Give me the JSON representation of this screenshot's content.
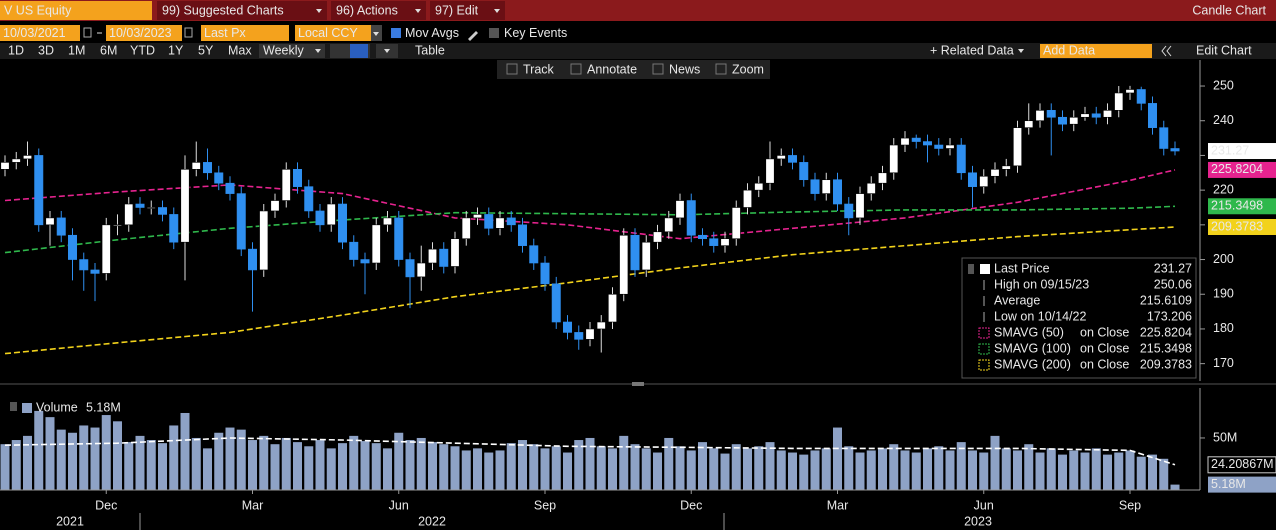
{
  "toolbar": {
    "security": "V US Equity",
    "menu": [
      "99) Suggested Charts",
      "96) Actions",
      "97) Edit"
    ],
    "title": "Candle Chart",
    "start_date": "10/03/2021",
    "end_date": "10/03/2023",
    "field": "Last Px",
    "currency": "Local CCY",
    "mov_avgs": "Mov Avgs",
    "key_events": "Key Events",
    "periods": [
      "1D",
      "3D",
      "1M",
      "6M",
      "YTD",
      "1Y",
      "5Y",
      "Max"
    ],
    "frequency": "Weekly",
    "table": "Table",
    "related_data": "+ Related Data",
    "add_data": "Add Data",
    "edit_chart": "Edit Chart",
    "tools": [
      "Track",
      "Annotate",
      "News",
      "Zoom"
    ]
  },
  "chart_data": [
    {
      "type": "candlestick",
      "categories": [
        null,
        null,
        null,
        null,
        null,
        null,
        null,
        null,
        null,
        "Dec",
        null,
        null,
        null,
        null,
        null,
        null,
        null,
        null,
        null,
        null,
        null,
        null,
        "Mar",
        null,
        null,
        null,
        null,
        null,
        null,
        null,
        null,
        null,
        null,
        null,
        null,
        "Jun",
        null,
        null,
        null,
        null,
        null,
        null,
        null,
        null,
        null,
        null,
        null,
        null,
        "Sep",
        null,
        null,
        null,
        null,
        null,
        null,
        null,
        null,
        null,
        null,
        null,
        null,
        "Dec",
        null,
        null,
        null,
        null,
        null,
        null,
        null,
        null,
        null,
        null,
        null,
        null,
        "Mar",
        null,
        null,
        null,
        null,
        null,
        null,
        null,
        null,
        null,
        null,
        null,
        null,
        "Jun",
        null,
        null,
        null,
        null,
        null,
        null,
        null,
        null,
        null,
        null,
        null,
        null,
        "Sep",
        null,
        null,
        null,
        null
      ],
      "year_labels": [
        "2021",
        "2022",
        "2023"
      ],
      "open": [
        226,
        228,
        229,
        230,
        210,
        212,
        207,
        200,
        197,
        196,
        210,
        210,
        216,
        215,
        215,
        213,
        205,
        226,
        228,
        225,
        222,
        219,
        203,
        197,
        214,
        217,
        226,
        221,
        214,
        210,
        216,
        205,
        200,
        199,
        210,
        212,
        200,
        195,
        199,
        203,
        198,
        206,
        212,
        213,
        209,
        212,
        210,
        204,
        199,
        193,
        182,
        179,
        177,
        180,
        182,
        190,
        207,
        197,
        205,
        208,
        212,
        217,
        207,
        206,
        204,
        206,
        215,
        220,
        222,
        229,
        230,
        228,
        223,
        219,
        223,
        216,
        212,
        219,
        222,
        225,
        233,
        235,
        234,
        233,
        232,
        233,
        225,
        221,
        224,
        226,
        227,
        238,
        240,
        243,
        241,
        239,
        241,
        242,
        241,
        243,
        248,
        249,
        245,
        238,
        232
      ],
      "high": [
        230,
        231,
        234,
        232,
        214,
        214,
        209,
        202,
        199,
        212,
        213,
        218,
        218,
        217,
        217,
        215,
        230,
        234,
        232,
        227,
        224,
        221,
        205,
        216,
        219,
        228,
        228,
        223,
        216,
        218,
        218,
        207,
        202,
        212,
        214,
        214,
        202,
        204,
        205,
        205,
        208,
        214,
        215,
        215,
        214,
        214,
        212,
        206,
        201,
        195,
        184,
        181,
        182,
        184,
        192,
        209,
        209,
        207,
        210,
        214,
        219,
        219,
        209,
        208,
        208,
        217,
        222,
        224,
        234,
        232,
        232,
        230,
        225,
        225,
        225,
        218,
        221,
        224,
        227,
        235,
        237,
        236,
        236,
        235,
        235,
        235,
        227,
        226,
        228,
        229,
        240,
        245,
        245,
        245,
        243,
        243,
        244,
        244,
        245,
        250,
        250.06,
        249.8,
        247,
        240,
        234
      ],
      "low": [
        224,
        226,
        227,
        208,
        204,
        205,
        194,
        191,
        188,
        194,
        207,
        208,
        213,
        213,
        211,
        203,
        194,
        224,
        223,
        220,
        217,
        201,
        185,
        195,
        212,
        215,
        219,
        212,
        208,
        208,
        203,
        198,
        190,
        197,
        208,
        198,
        186,
        191,
        197,
        196,
        196,
        204,
        210,
        207,
        207,
        208,
        202,
        197,
        191,
        180,
        177,
        174,
        175,
        173.206,
        180,
        188,
        195,
        195,
        203,
        206,
        210,
        205,
        204,
        202,
        202,
        204,
        213,
        218,
        220,
        227,
        226,
        221,
        217,
        217,
        214,
        207,
        210,
        217,
        220,
        223,
        231,
        232,
        228,
        230,
        230,
        223,
        215,
        219,
        222,
        224,
        225,
        236,
        238,
        230,
        237,
        237,
        240,
        239,
        239,
        241,
        246,
        243,
        236,
        230,
        230
      ],
      "close": [
        228,
        229,
        230,
        210,
        212,
        207,
        200,
        197,
        196,
        210,
        210,
        216,
        215,
        215,
        213,
        205,
        226,
        228,
        225,
        222,
        219,
        203,
        197,
        214,
        217,
        226,
        221,
        214,
        210,
        216,
        205,
        200,
        199,
        210,
        212,
        200,
        195,
        199,
        203,
        198,
        206,
        212,
        213,
        209,
        212,
        210,
        204,
        199,
        193,
        182,
        179,
        177,
        180,
        182,
        190,
        207,
        197,
        205,
        208,
        212,
        217,
        207,
        206,
        204,
        206,
        215,
        220,
        222,
        229,
        230,
        228,
        223,
        219,
        223,
        216,
        212,
        219,
        222,
        225,
        233,
        235,
        234,
        233,
        232,
        233,
        225,
        221,
        224,
        226,
        227,
        238,
        240,
        243,
        241,
        239,
        241,
        242,
        241,
        243,
        248,
        249,
        245,
        238,
        232,
        231.27
      ],
      "color_up": "#ffffff",
      "color_down": "#2f8ff0",
      "ylim": [
        165,
        257.5
      ],
      "yticks": [
        170,
        180,
        190,
        200,
        210,
        220,
        230,
        240,
        250
      ],
      "grid": false,
      "stats": [
        {
          "label": "Last Price"
        },
        {
          "label": "High on 09/15/23"
        },
        {
          "label": "Average",
          "value": 215.6109
        },
        {
          "label": "Low on 10/14/22"
        }
      ],
      "series": [
        {
          "name": "SMAVG (50)",
          "field": "on Close",
          "color": "#e6238f",
          "x": [
            0,
            10,
            20,
            30,
            40,
            50,
            60,
            70,
            80,
            90,
            100,
            104
          ],
          "values": [
            217,
            219.5,
            221.5,
            219,
            212,
            210,
            206,
            209,
            212,
            216.5,
            222.8,
            225.8204
          ]
        },
        {
          "name": "SMAVG (100)",
          "field": "on Close",
          "color": "#2fb84c",
          "x": [
            0,
            10,
            20,
            30,
            40,
            50,
            60,
            70,
            80,
            90,
            100,
            104
          ],
          "values": [
            202,
            205.7,
            209,
            211.4,
            213.5,
            213.2,
            212.9,
            213.7,
            214.3,
            214.3,
            214.8,
            215.3498
          ]
        },
        {
          "name": "SMAVG (200)",
          "field": "on Close",
          "color": "#f2d21b",
          "x": [
            0,
            10,
            20,
            30,
            40,
            50,
            60,
            70,
            80,
            90,
            100,
            104
          ],
          "values": [
            172.9,
            176,
            179,
            184,
            189.3,
            193.3,
            197.6,
            201.4,
            204,
            206.6,
            208.6,
            209.3783
          ]
        }
      ]
    },
    {
      "type": "bar",
      "legend": "Volume",
      "color": "#8ea2c6",
      "values": [
        44,
        48,
        52,
        76,
        70,
        58,
        55,
        62,
        60,
        72,
        66,
        46,
        52,
        48,
        45,
        62,
        74,
        50,
        40,
        55,
        60,
        58,
        48,
        52,
        44,
        50,
        46,
        42,
        48,
        40,
        45,
        52,
        47,
        45,
        40,
        55,
        48,
        50,
        46,
        44,
        42,
        38,
        40,
        36,
        38,
        45,
        48,
        44,
        40,
        42,
        36,
        48,
        50,
        42,
        40,
        52,
        44,
        40,
        36,
        50,
        42,
        38,
        46,
        40,
        35,
        44,
        40,
        42,
        46,
        38,
        36,
        34,
        38,
        40,
        60,
        42,
        36,
        38,
        40,
        44,
        38,
        36,
        40,
        42,
        38,
        46,
        38,
        36,
        52,
        40,
        38,
        44,
        36,
        40,
        34,
        38,
        36,
        40,
        34,
        36,
        38,
        32,
        34,
        30,
        5.18
      ],
      "last_label": "5.18M",
      "ylim": [
        0,
        98
      ],
      "yticks": [
        {
          "value": 50,
          "label": "50M"
        }
      ],
      "average": {
        "color": "#ffffff",
        "x": [
          0,
          10,
          20,
          30,
          40,
          50,
          60,
          70,
          80,
          90,
          100,
          104
        ],
        "values": [
          43,
          45,
          50,
          48,
          45,
          42,
          41,
          40,
          40,
          40,
          38,
          24.20867
        ],
        "last_label": "24.20867M"
      }
    }
  ]
}
